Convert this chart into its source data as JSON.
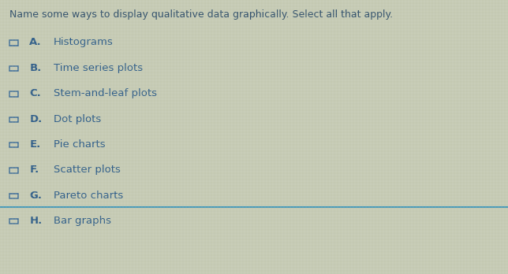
{
  "question": "Name some ways to display qualitative data graphically. Select all that apply.",
  "options": [
    {
      "letter": "A.",
      "text": "Histograms"
    },
    {
      "letter": "B.",
      "text": "Time series plots"
    },
    {
      "letter": "C.",
      "text": "Stem-and-leaf plots"
    },
    {
      "letter": "D.",
      "text": "Dot plots"
    },
    {
      "letter": "E.",
      "text": "Pie charts"
    },
    {
      "letter": "F.",
      "text": "Scatter plots"
    },
    {
      "letter": "G.",
      "text": "Pareto charts"
    },
    {
      "letter": "H.",
      "text": "Bar graphs"
    }
  ],
  "bg_color": "#c8cdb8",
  "text_color": "#2a5a8a",
  "question_color": "#2a4a6a",
  "checkbox_color": "#3a6a9a",
  "highlight_line_color": "#4499bb",
  "question_fontsize": 9.0,
  "option_fontsize": 9.5,
  "letter_fontsize": 9.5,
  "checkbox_size": 0.013,
  "fig_width": 6.44,
  "fig_height": 3.48
}
